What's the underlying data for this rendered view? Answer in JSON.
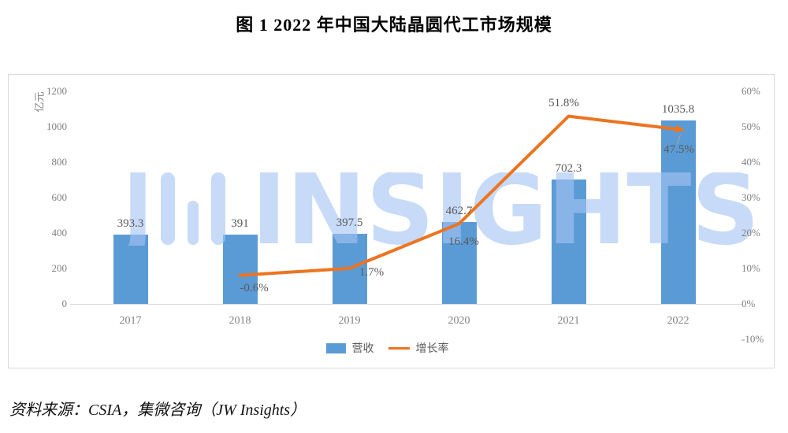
{
  "title": "图 1  2022 年中国大陆晶圆代工市场规模",
  "source": "资料来源：CSIA，集微咨询（JW Insights）",
  "watermark": {
    "j": "J",
    "text": "INSIGHTS"
  },
  "colors": {
    "bar": "#5B9BD5",
    "line": "#ED7420",
    "watermark": "rgba(165,195,243,0.62)",
    "axis_text": "#808080",
    "label_text": "#595959",
    "border": "#d9d9d9"
  },
  "chart_data": {
    "type": "bar+line",
    "title": "2022 年中国大陆晶圆代工市场规模",
    "categories": [
      "2017",
      "2018",
      "2019",
      "2020",
      "2021",
      "2022"
    ],
    "series": [
      {
        "name": "营收",
        "type": "bar",
        "values": [
          393.3,
          391,
          397.5,
          462.7,
          702.3,
          1035.8
        ],
        "labels": [
          "393.3",
          "391",
          "397.5",
          "462.7",
          "702.3",
          "1035.8"
        ]
      },
      {
        "name": "增长率",
        "type": "line",
        "values": [
          null,
          -0.6,
          1.7,
          16.4,
          51.8,
          47.5
        ],
        "labels": [
          null,
          "-0.6%",
          "1.7%",
          "16.4%",
          "51.8%",
          "47.5%"
        ]
      }
    ],
    "left_axis": {
      "title": "亿元",
      "min": 0,
      "max": 1200,
      "ticks": [
        "1200",
        "1000",
        "800",
        "600",
        "400",
        "200",
        "0"
      ]
    },
    "right_axis": {
      "min": -10,
      "max": 60,
      "ticks": [
        "60%",
        "50%",
        "40%",
        "30%",
        "20%",
        "10%",
        "0%",
        "-10%"
      ]
    },
    "legend": [
      {
        "label": "营收",
        "marker": "bar"
      },
      {
        "label": "增长率",
        "marker": "line"
      }
    ],
    "grid": false,
    "legend_position": "bottom-center"
  }
}
